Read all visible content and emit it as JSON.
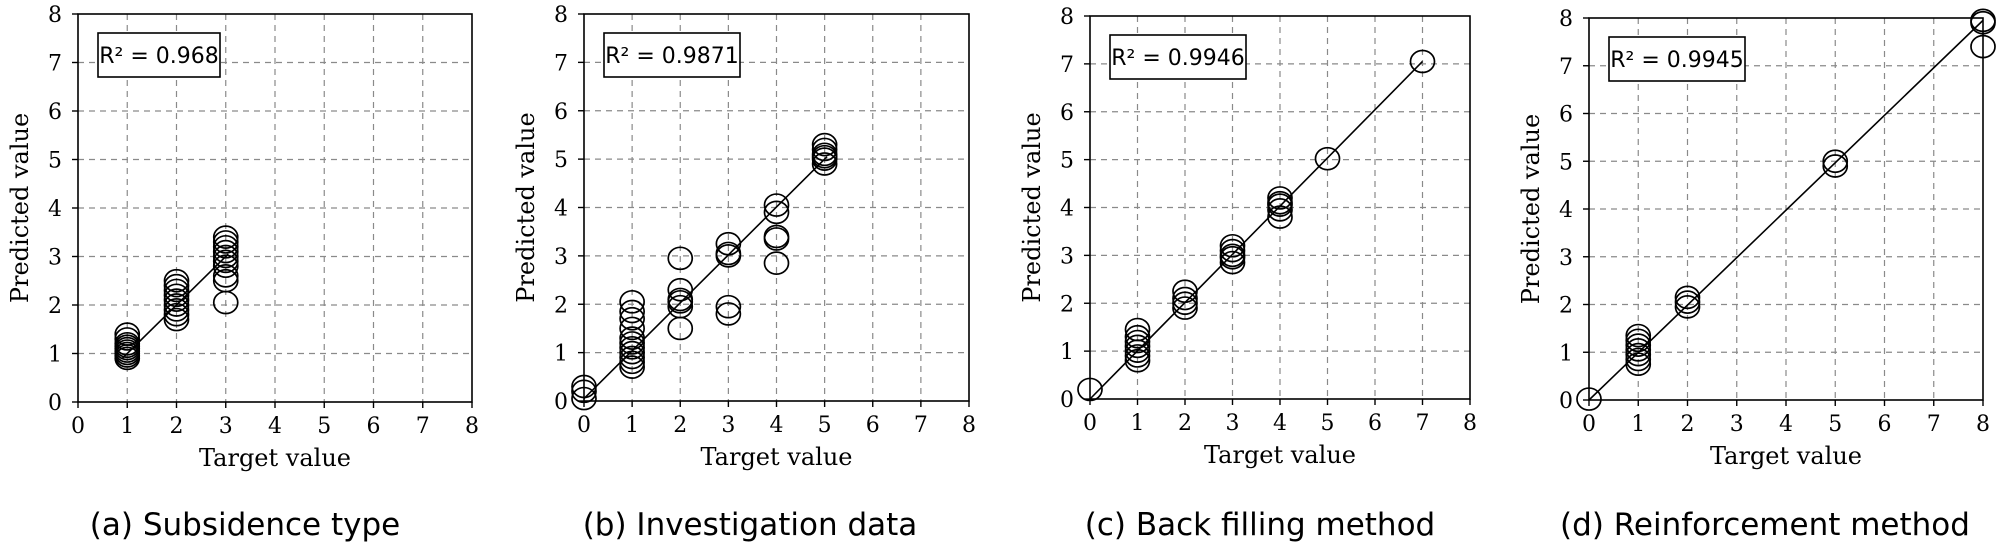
{
  "chart_data": [
    {
      "type": "scatter",
      "caption": "(a) Subsidence type",
      "xlabel": "Target value",
      "ylabel": "Predicted value",
      "annotation": "R² = 0.968",
      "xlim": [
        0,
        8
      ],
      "ylim": [
        0,
        8
      ],
      "xticks": [
        "0",
        "1",
        "2",
        "3",
        "4",
        "5",
        "6",
        "7",
        "8"
      ],
      "yticks": [
        "0",
        "1",
        "2",
        "3",
        "4",
        "5",
        "6",
        "7",
        "8"
      ],
      "grid": true,
      "fit_line": [
        [
          0.9,
          0.9
        ],
        [
          3.05,
          3.05
        ]
      ],
      "points": [
        [
          1,
          0.9
        ],
        [
          1,
          0.95
        ],
        [
          1,
          1.0
        ],
        [
          1,
          1.05
        ],
        [
          1,
          1.1
        ],
        [
          1,
          1.15
        ],
        [
          1,
          1.2
        ],
        [
          1,
          1.3
        ],
        [
          1,
          1.4
        ],
        [
          2,
          1.7
        ],
        [
          2,
          1.8
        ],
        [
          2,
          1.9
        ],
        [
          2,
          2.0
        ],
        [
          2,
          2.1
        ],
        [
          2,
          2.2
        ],
        [
          2,
          2.3
        ],
        [
          2,
          2.4
        ],
        [
          2,
          2.5
        ],
        [
          3,
          2.05
        ],
        [
          3,
          2.5
        ],
        [
          3,
          2.6
        ],
        [
          3,
          2.8
        ],
        [
          3,
          2.9
        ],
        [
          3,
          3.0
        ],
        [
          3,
          3.1
        ],
        [
          3,
          3.2
        ],
        [
          3,
          3.3
        ],
        [
          3,
          3.4
        ]
      ]
    },
    {
      "type": "scatter",
      "caption": "(b) Investigation data",
      "xlabel": "Target value",
      "ylabel": "Predicted value",
      "annotation": "R² = 0.9871",
      "xlim": [
        0,
        8
      ],
      "ylim": [
        0,
        8
      ],
      "xticks": [
        "0",
        "1",
        "2",
        "3",
        "4",
        "5",
        "6",
        "7",
        "8"
      ],
      "yticks": [
        "0",
        "1",
        "2",
        "3",
        "4",
        "5",
        "6",
        "7",
        "8"
      ],
      "grid": true,
      "fit_line": [
        [
          0,
          0.05
        ],
        [
          5.05,
          5.05
        ]
      ],
      "points": [
        [
          0,
          0.05
        ],
        [
          0,
          0.2
        ],
        [
          0,
          0.3
        ],
        [
          1,
          0.7
        ],
        [
          1,
          0.8
        ],
        [
          1,
          0.9
        ],
        [
          1,
          1.0
        ],
        [
          1,
          1.1
        ],
        [
          1,
          1.2
        ],
        [
          1,
          1.3
        ],
        [
          1,
          1.5
        ],
        [
          1,
          1.7
        ],
        [
          1,
          1.85
        ],
        [
          1,
          2.05
        ],
        [
          2,
          1.5
        ],
        [
          2,
          1.95
        ],
        [
          2,
          2.05
        ],
        [
          2,
          2.1
        ],
        [
          2,
          2.3
        ],
        [
          2,
          2.95
        ],
        [
          3,
          1.8
        ],
        [
          3,
          1.95
        ],
        [
          3,
          3.0
        ],
        [
          3,
          3.05
        ],
        [
          3,
          3.25
        ],
        [
          4,
          2.85
        ],
        [
          4,
          3.35
        ],
        [
          4,
          3.4
        ],
        [
          4,
          3.9
        ],
        [
          4,
          4.05
        ],
        [
          5,
          4.9
        ],
        [
          5,
          5.0
        ],
        [
          5,
          5.05
        ],
        [
          5,
          5.1
        ],
        [
          5,
          5.2
        ],
        [
          5,
          5.3
        ]
      ]
    },
    {
      "type": "scatter",
      "caption": "(c) Back filling method",
      "xlabel": "Target value",
      "ylabel": "Predicted value",
      "annotation": "R² = 0.9946",
      "xlim": [
        0,
        8
      ],
      "ylim": [
        0,
        8
      ],
      "xticks": [
        "0",
        "1",
        "2",
        "3",
        "4",
        "5",
        "6",
        "7",
        "8"
      ],
      "yticks": [
        "0",
        "1",
        "2",
        "3",
        "4",
        "5",
        "6",
        "7",
        "8"
      ],
      "grid": true,
      "fit_line": [
        [
          0,
          0
        ],
        [
          7,
          7.05
        ]
      ],
      "points": [
        [
          0,
          0.2
        ],
        [
          1,
          0.8
        ],
        [
          1,
          0.9
        ],
        [
          1,
          1.0
        ],
        [
          1,
          1.1
        ],
        [
          1,
          1.2
        ],
        [
          1,
          1.3
        ],
        [
          1,
          1.45
        ],
        [
          2,
          1.9
        ],
        [
          2,
          2.0
        ],
        [
          2,
          2.1
        ],
        [
          2,
          2.25
        ],
        [
          3,
          2.85
        ],
        [
          3,
          2.95
        ],
        [
          3,
          3.0
        ],
        [
          3,
          3.1
        ],
        [
          3,
          3.2
        ],
        [
          4,
          3.8
        ],
        [
          4,
          3.95
        ],
        [
          4,
          4.05
        ],
        [
          4,
          4.1
        ],
        [
          4,
          4.2
        ],
        [
          5,
          5.02
        ],
        [
          7,
          7.05
        ]
      ]
    },
    {
      "type": "scatter",
      "caption": "(d) Reinforcement method",
      "xlabel": "Target value",
      "ylabel": "Predicted value",
      "annotation": "R² = 0.9945",
      "xlim": [
        0,
        8
      ],
      "ylim": [
        0,
        8
      ],
      "xticks": [
        "0",
        "1",
        "2",
        "3",
        "4",
        "5",
        "6",
        "7",
        "8"
      ],
      "yticks": [
        "0",
        "1",
        "2",
        "3",
        "4",
        "5",
        "6",
        "7",
        "8"
      ],
      "grid": true,
      "fit_line": [
        [
          0,
          0
        ],
        [
          8,
          7.95
        ]
      ],
      "points": [
        [
          0,
          0.02
        ],
        [
          1,
          0.75
        ],
        [
          1,
          0.85
        ],
        [
          1,
          0.95
        ],
        [
          1,
          1.05
        ],
        [
          1,
          1.15
        ],
        [
          1,
          1.25
        ],
        [
          1,
          1.35
        ],
        [
          2,
          1.95
        ],
        [
          2,
          2.05
        ],
        [
          2,
          2.15
        ],
        [
          5,
          4.9
        ],
        [
          5,
          5.0
        ],
        [
          8,
          7.4
        ],
        [
          8,
          7.9
        ],
        [
          8,
          7.95
        ]
      ]
    }
  ]
}
